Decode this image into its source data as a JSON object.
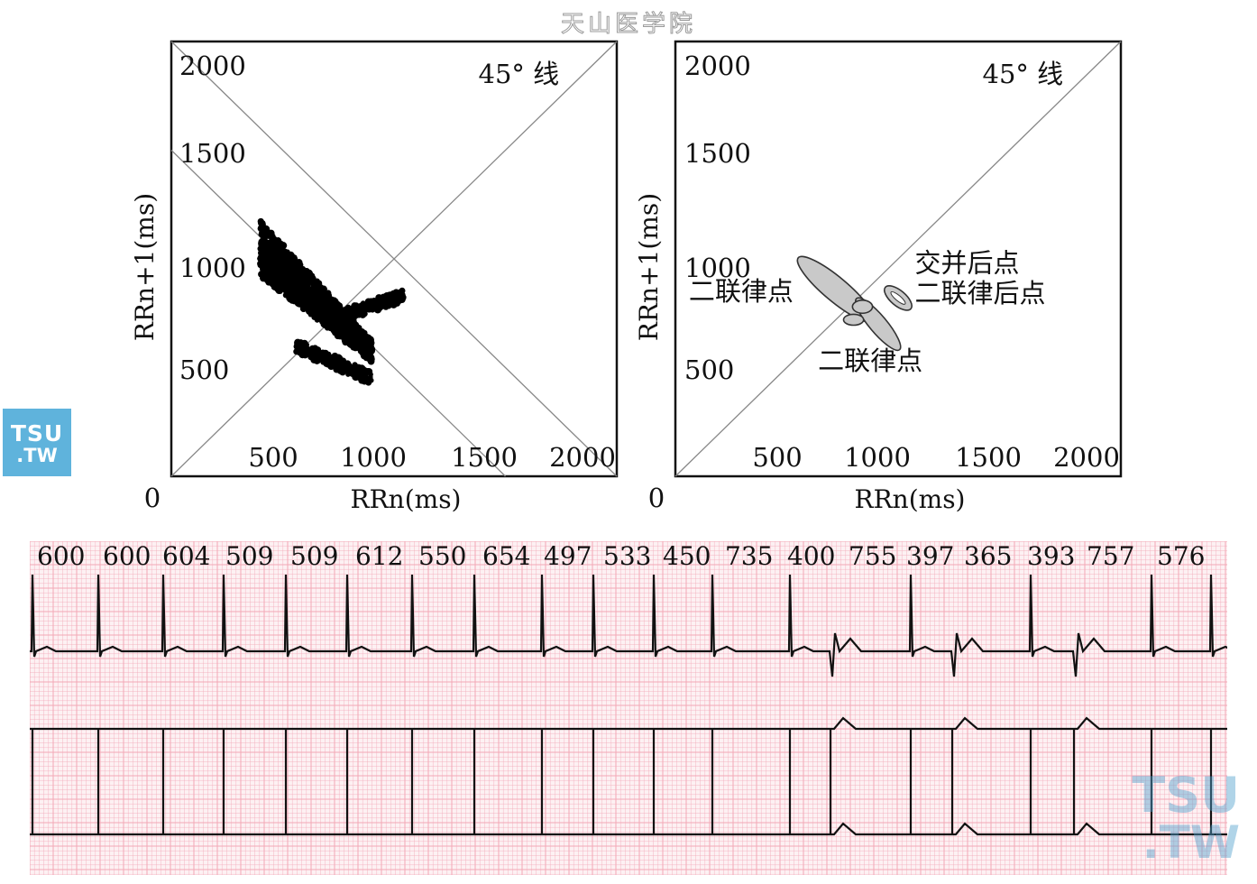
{
  "header": {
    "title": "天山医学院"
  },
  "watermarks": {
    "left_line1": "TSU",
    "left_line2": ".TW",
    "right_line1": "TSU",
    "right_line2": ".TW",
    "color": "#5fb3dc"
  },
  "chart_data": [
    {
      "type": "scatter",
      "xlabel": "RRn(ms)",
      "ylabel": "RRn+1(ms)",
      "origin_label": "0",
      "x_ticks": [
        "500",
        "1000",
        "1500",
        "2000"
      ],
      "y_ticks": [
        "500",
        "1000",
        "1500",
        "2000"
      ],
      "xlim": [
        0,
        2000
      ],
      "ylim": [
        0,
        2000
      ],
      "annotations": [
        {
          "text": "45° 线",
          "x": 1560,
          "y": 1810
        }
      ],
      "diagonal": {
        "from": [
          0,
          0
        ],
        "to": [
          2000,
          2000
        ]
      },
      "anti_diagonals": [
        {
          "from": [
            0,
            1500
          ],
          "to": [
            1500,
            0
          ]
        },
        {
          "from": [
            0,
            2000
          ],
          "to": [
            2000,
            0
          ]
        }
      ],
      "clusters": [
        {
          "x_range": [
            400,
            900
          ],
          "y_range": [
            550,
            1050
          ],
          "shape": "dense band along RRn+RRn+1≈1500"
        },
        {
          "x_range": [
            770,
            1040
          ],
          "y_range": [
            750,
            840
          ],
          "shape": "small elongated cluster"
        },
        {
          "x_range": [
            560,
            900
          ],
          "y_range": [
            440,
            560
          ],
          "shape": "tail"
        }
      ],
      "color": "#000000"
    },
    {
      "type": "scatter",
      "xlabel": "RRn(ms)",
      "ylabel": "RRn+1(ms)",
      "origin_label": "0",
      "x_ticks": [
        "500",
        "1000",
        "1500",
        "2000"
      ],
      "y_ticks": [
        "500",
        "1000",
        "1500",
        "2000"
      ],
      "xlim": [
        0,
        2000
      ],
      "ylim": [
        0,
        2000
      ],
      "annotations": [
        {
          "text": "45° 线",
          "x": 1560,
          "y": 1810
        },
        {
          "text": "二联律点",
          "x": 60,
          "y": 810
        },
        {
          "text": "交并后点",
          "x": 1075,
          "y": 940
        },
        {
          "text": "二联律后点",
          "x": 1075,
          "y": 800
        },
        {
          "text": "二联律点",
          "x": 640,
          "y": 490
        }
      ],
      "diagonal": {
        "from": [
          0,
          0
        ],
        "to": [
          2000,
          2000
        ]
      },
      "ellipses": [
        {
          "cx": 720,
          "cy": 860,
          "rx": 220,
          "ry": 55,
          "angle": -40
        },
        {
          "cx": 910,
          "cy": 700,
          "rx": 150,
          "ry": 40,
          "angle": -50
        },
        {
          "cx": 840,
          "cy": 780,
          "rx": 45,
          "ry": 30,
          "angle": 0
        },
        {
          "cx": 800,
          "cy": 720,
          "rx": 45,
          "ry": 25,
          "angle": 0
        },
        {
          "cx": 1000,
          "cy": 820,
          "rx": 75,
          "ry": 35,
          "angle": -40
        }
      ],
      "ellipse_fill": "#c9c9c9",
      "ellipse_stroke": "#333333"
    },
    {
      "type": "ecg_strip",
      "rr_intervals_ms": [
        "600",
        "600",
        "604",
        "509",
        "509",
        "612",
        "550",
        "654",
        "497",
        "533",
        "450",
        "735",
        "400",
        "755",
        "397",
        "365",
        "393",
        "757",
        "576"
      ],
      "grid_color": "#f2a7b6",
      "trace_color": "#111111",
      "background": "#fdf1f3"
    }
  ]
}
